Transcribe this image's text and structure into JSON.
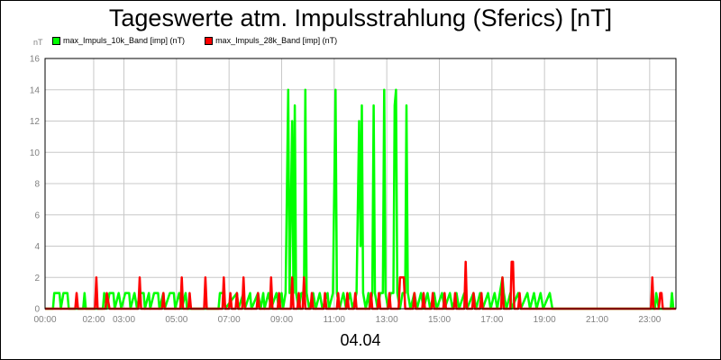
{
  "chart_data": {
    "type": "line",
    "title": "Tageswerte atm. Impulsstrahlung (Sferics) [nT]",
    "yunit": "nT",
    "xlabel": "04.04",
    "ylim": [
      0,
      16
    ],
    "xlim_hours": [
      0,
      24
    ],
    "yticks": [
      0,
      2,
      4,
      6,
      8,
      10,
      12,
      14,
      16
    ],
    "xticks": [
      "00:00",
      "02:00",
      "03:00",
      "05:00",
      "07:00",
      "09:00",
      "11:00",
      "13:00",
      "15:00",
      "17:00",
      "19:00",
      "21:00",
      "23:00"
    ],
    "xtick_hours": [
      0,
      1.85,
      3.0,
      5.0,
      7.0,
      9.0,
      11.0,
      13.0,
      15.0,
      17.0,
      19.0,
      21.0,
      23.0
    ],
    "grid": true,
    "legend_position": "top-left",
    "series": [
      {
        "name": "max_Impuls_10k_Band [imp] (nT)",
        "color": "#00ff00",
        "points": [
          [
            0.0,
            0
          ],
          [
            0.3,
            0
          ],
          [
            0.35,
            1
          ],
          [
            0.55,
            1
          ],
          [
            0.6,
            0
          ],
          [
            0.7,
            1
          ],
          [
            0.85,
            1
          ],
          [
            0.9,
            0
          ],
          [
            1.45,
            0
          ],
          [
            1.5,
            1
          ],
          [
            1.55,
            0
          ],
          [
            2.2,
            0
          ],
          [
            2.25,
            1
          ],
          [
            2.35,
            0
          ],
          [
            2.45,
            1
          ],
          [
            2.6,
            1
          ],
          [
            2.65,
            0
          ],
          [
            2.8,
            1
          ],
          [
            2.9,
            0
          ],
          [
            3.05,
            1
          ],
          [
            3.2,
            1
          ],
          [
            3.25,
            0
          ],
          [
            3.4,
            1
          ],
          [
            3.5,
            0
          ],
          [
            3.6,
            1
          ],
          [
            3.75,
            1
          ],
          [
            3.8,
            0
          ],
          [
            3.95,
            1
          ],
          [
            4.0,
            0
          ],
          [
            4.15,
            1
          ],
          [
            4.3,
            1
          ],
          [
            4.35,
            0
          ],
          [
            4.5,
            1
          ],
          [
            4.55,
            0
          ],
          [
            4.75,
            1
          ],
          [
            4.9,
            1
          ],
          [
            4.95,
            0
          ],
          [
            5.1,
            1
          ],
          [
            5.2,
            0
          ],
          [
            5.35,
            1
          ],
          [
            5.4,
            0
          ],
          [
            6.6,
            0
          ],
          [
            6.65,
            1
          ],
          [
            6.8,
            1
          ],
          [
            6.85,
            0
          ],
          [
            7.3,
            1
          ],
          [
            7.35,
            0
          ],
          [
            7.55,
            1
          ],
          [
            7.6,
            0
          ],
          [
            7.8,
            1
          ],
          [
            7.85,
            0
          ],
          [
            8.1,
            1
          ],
          [
            8.2,
            0
          ],
          [
            8.3,
            1
          ],
          [
            8.35,
            0
          ],
          [
            8.5,
            1
          ],
          [
            8.6,
            0
          ],
          [
            8.8,
            1
          ],
          [
            8.9,
            0
          ],
          [
            9.0,
            1
          ],
          [
            9.05,
            0
          ],
          [
            9.15,
            1
          ],
          [
            9.25,
            14
          ],
          [
            9.3,
            1
          ],
          [
            9.4,
            12
          ],
          [
            9.45,
            1
          ],
          [
            9.5,
            13
          ],
          [
            9.55,
            1
          ],
          [
            9.65,
            0
          ],
          [
            9.75,
            1
          ],
          [
            9.85,
            1
          ],
          [
            9.9,
            14
          ],
          [
            9.95,
            1
          ],
          [
            10.05,
            0
          ],
          [
            10.2,
            1
          ],
          [
            10.3,
            0
          ],
          [
            10.45,
            1
          ],
          [
            10.55,
            0
          ],
          [
            10.75,
            1
          ],
          [
            10.8,
            0
          ],
          [
            10.95,
            1
          ],
          [
            11.05,
            14
          ],
          [
            11.1,
            1
          ],
          [
            11.2,
            0
          ],
          [
            11.35,
            1
          ],
          [
            11.45,
            0
          ],
          [
            11.6,
            1
          ],
          [
            11.7,
            0
          ],
          [
            11.85,
            1
          ],
          [
            11.95,
            12
          ],
          [
            12.0,
            4
          ],
          [
            12.05,
            13
          ],
          [
            12.1,
            1
          ],
          [
            12.2,
            0
          ],
          [
            12.3,
            1
          ],
          [
            12.35,
            0
          ],
          [
            12.45,
            1
          ],
          [
            12.5,
            13
          ],
          [
            12.55,
            1
          ],
          [
            12.65,
            0
          ],
          [
            12.75,
            1
          ],
          [
            12.85,
            1
          ],
          [
            12.9,
            14
          ],
          [
            12.95,
            1
          ],
          [
            13.05,
            0
          ],
          [
            13.15,
            1
          ],
          [
            13.25,
            1
          ],
          [
            13.3,
            13
          ],
          [
            13.35,
            14
          ],
          [
            13.4,
            1
          ],
          [
            13.5,
            0
          ],
          [
            13.6,
            1
          ],
          [
            13.7,
            1
          ],
          [
            13.75,
            13
          ],
          [
            13.8,
            1
          ],
          [
            13.9,
            0
          ],
          [
            14.05,
            1
          ],
          [
            14.15,
            0
          ],
          [
            14.3,
            1
          ],
          [
            14.4,
            0
          ],
          [
            14.55,
            1
          ],
          [
            14.65,
            0
          ],
          [
            14.8,
            1
          ],
          [
            14.9,
            0
          ],
          [
            15.1,
            1
          ],
          [
            15.2,
            0
          ],
          [
            15.4,
            1
          ],
          [
            15.5,
            0
          ],
          [
            15.65,
            1
          ],
          [
            15.75,
            0
          ],
          [
            15.95,
            1
          ],
          [
            16.05,
            0
          ],
          [
            16.3,
            1
          ],
          [
            16.4,
            0
          ],
          [
            16.55,
            1
          ],
          [
            16.65,
            0
          ],
          [
            16.85,
            1
          ],
          [
            16.95,
            0
          ],
          [
            17.1,
            1
          ],
          [
            17.2,
            0
          ],
          [
            17.3,
            1
          ],
          [
            17.4,
            2
          ],
          [
            17.45,
            1
          ],
          [
            17.55,
            0
          ],
          [
            17.7,
            1
          ],
          [
            17.75,
            0
          ],
          [
            18.0,
            1
          ],
          [
            18.1,
            0
          ],
          [
            18.35,
            1
          ],
          [
            18.45,
            0
          ],
          [
            18.6,
            1
          ],
          [
            18.7,
            0
          ],
          [
            18.85,
            1
          ],
          [
            18.95,
            0
          ],
          [
            19.2,
            1
          ],
          [
            19.3,
            0
          ],
          [
            23.2,
            0
          ],
          [
            23.25,
            1
          ],
          [
            23.35,
            0
          ],
          [
            23.8,
            0
          ],
          [
            23.85,
            1
          ],
          [
            23.9,
            0
          ]
        ]
      },
      {
        "name": "max_Impuls_28k_Band [imp] (nT)",
        "color": "#ff0000",
        "points": [
          [
            0.0,
            0
          ],
          [
            1.15,
            0
          ],
          [
            1.2,
            1
          ],
          [
            1.25,
            0
          ],
          [
            1.9,
            0
          ],
          [
            1.95,
            2
          ],
          [
            2.0,
            0
          ],
          [
            2.3,
            0
          ],
          [
            2.35,
            1
          ],
          [
            2.45,
            0
          ],
          [
            3.55,
            0
          ],
          [
            3.6,
            2
          ],
          [
            3.65,
            0
          ],
          [
            4.45,
            0
          ],
          [
            4.5,
            1
          ],
          [
            4.55,
            0
          ],
          [
            5.15,
            0
          ],
          [
            5.2,
            2
          ],
          [
            5.25,
            0
          ],
          [
            5.45,
            0
          ],
          [
            5.5,
            1
          ],
          [
            5.55,
            0
          ],
          [
            6.05,
            0
          ],
          [
            6.1,
            2
          ],
          [
            6.15,
            0
          ],
          [
            6.75,
            0
          ],
          [
            6.8,
            2
          ],
          [
            6.85,
            0
          ],
          [
            7.0,
            0
          ],
          [
            7.05,
            1
          ],
          [
            7.1,
            0
          ],
          [
            7.25,
            0
          ],
          [
            7.3,
            1
          ],
          [
            7.35,
            0
          ],
          [
            7.5,
            0
          ],
          [
            7.55,
            2
          ],
          [
            7.6,
            0
          ],
          [
            8.05,
            0
          ],
          [
            8.1,
            1
          ],
          [
            8.15,
            0
          ],
          [
            8.55,
            0
          ],
          [
            8.6,
            2
          ],
          [
            8.65,
            0
          ],
          [
            8.85,
            0
          ],
          [
            8.9,
            1
          ],
          [
            8.95,
            0
          ],
          [
            9.35,
            0
          ],
          [
            9.4,
            2
          ],
          [
            9.45,
            0
          ],
          [
            9.6,
            0
          ],
          [
            9.65,
            1
          ],
          [
            9.7,
            0
          ],
          [
            9.8,
            0
          ],
          [
            9.85,
            2
          ],
          [
            9.9,
            0
          ],
          [
            10.1,
            0
          ],
          [
            10.15,
            1
          ],
          [
            10.2,
            0
          ],
          [
            10.6,
            0
          ],
          [
            10.65,
            1
          ],
          [
            10.7,
            0
          ],
          [
            11.1,
            0
          ],
          [
            11.15,
            1
          ],
          [
            11.2,
            0
          ],
          [
            11.45,
            0
          ],
          [
            11.5,
            1
          ],
          [
            11.55,
            0
          ],
          [
            11.75,
            0
          ],
          [
            11.8,
            1
          ],
          [
            11.85,
            0
          ],
          [
            12.35,
            0
          ],
          [
            12.4,
            1
          ],
          [
            12.45,
            0
          ],
          [
            12.65,
            0
          ],
          [
            12.7,
            1
          ],
          [
            12.75,
            0
          ],
          [
            13.05,
            0
          ],
          [
            13.1,
            1
          ],
          [
            13.15,
            0
          ],
          [
            13.45,
            0
          ],
          [
            13.5,
            2
          ],
          [
            13.65,
            2
          ],
          [
            13.7,
            0
          ],
          [
            14.0,
            0
          ],
          [
            14.05,
            1
          ],
          [
            14.1,
            0
          ],
          [
            14.35,
            0
          ],
          [
            14.4,
            1
          ],
          [
            14.45,
            0
          ],
          [
            14.7,
            0
          ],
          [
            14.75,
            1
          ],
          [
            14.8,
            0
          ],
          [
            15.15,
            0
          ],
          [
            15.2,
            1
          ],
          [
            15.25,
            0
          ],
          [
            15.55,
            0
          ],
          [
            15.6,
            1
          ],
          [
            15.65,
            0
          ],
          [
            15.95,
            0
          ],
          [
            16.0,
            3
          ],
          [
            16.05,
            0
          ],
          [
            16.25,
            0
          ],
          [
            16.3,
            1
          ],
          [
            16.35,
            0
          ],
          [
            16.55,
            0
          ],
          [
            16.6,
            1
          ],
          [
            16.65,
            0
          ],
          [
            17.35,
            0
          ],
          [
            17.4,
            2
          ],
          [
            17.45,
            0
          ],
          [
            17.7,
            0
          ],
          [
            17.75,
            3
          ],
          [
            17.8,
            3
          ],
          [
            17.85,
            0
          ],
          [
            18.0,
            0
          ],
          [
            18.05,
            1
          ],
          [
            18.1,
            0
          ],
          [
            23.05,
            0
          ],
          [
            23.1,
            2
          ],
          [
            23.15,
            0
          ],
          [
            23.35,
            0
          ],
          [
            23.4,
            1
          ],
          [
            23.45,
            1
          ],
          [
            23.5,
            0
          ],
          [
            24.0,
            0
          ]
        ]
      }
    ]
  }
}
